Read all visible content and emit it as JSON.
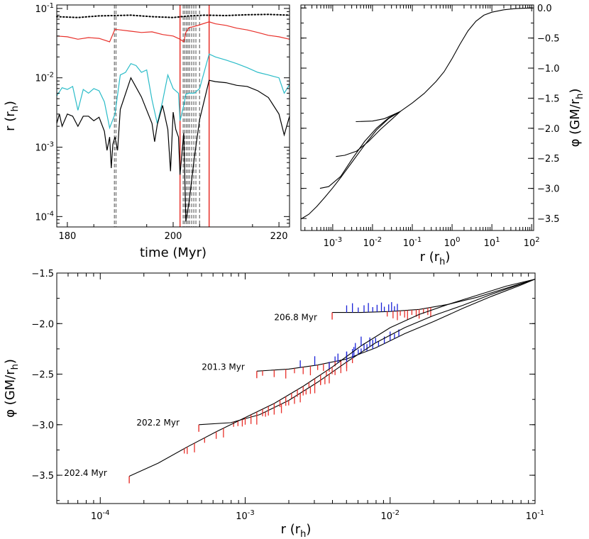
{
  "chart_data": [
    {
      "id": "time-evolution",
      "type": "line",
      "xlabel": "time  (Myr)",
      "ylabel_main": "r",
      "ylabel_sub": "h",
      "xlim": [
        178,
        222
      ],
      "ylim_log10": [
        -4.15,
        -0.95
      ],
      "yscale": "log",
      "xticks": [
        "180",
        "200",
        "220"
      ],
      "xtick_values": [
        180,
        200,
        220
      ],
      "ytick_bases": [
        "10",
        "10",
        "10",
        "10"
      ],
      "ytick_exps": [
        "-4",
        "-3",
        "-2",
        "-1"
      ],
      "ytick_values": [
        -4,
        -3,
        -2,
        -1
      ],
      "series": [
        {
          "style": "dotted",
          "color": "#000000",
          "x": [
            178,
            182,
            186,
            189,
            192,
            196,
            200,
            203,
            206,
            210,
            214,
            218,
            222
          ],
          "y": [
            0.076,
            0.074,
            0.078,
            0.079,
            0.08,
            0.076,
            0.074,
            0.078,
            0.08,
            0.079,
            0.081,
            0.082,
            0.08
          ]
        },
        {
          "style": "solid",
          "color": "#e8302a",
          "x": [
            178,
            180,
            182,
            184,
            186,
            188,
            189,
            190,
            192,
            194,
            196,
            198,
            200,
            201.3,
            202,
            202.4,
            203,
            204,
            205,
            206.8,
            208,
            210,
            212,
            214,
            216,
            218,
            220,
            222
          ],
          "y": [
            0.04,
            0.039,
            0.036,
            0.038,
            0.037,
            0.033,
            0.05,
            0.049,
            0.047,
            0.045,
            0.046,
            0.042,
            0.04,
            0.036,
            0.033,
            0.045,
            0.053,
            0.055,
            0.058,
            0.064,
            0.06,
            0.057,
            0.052,
            0.049,
            0.045,
            0.041,
            0.039,
            0.036
          ]
        },
        {
          "style": "solid",
          "color": "#2bbcc8",
          "x": [
            178,
            179,
            180,
            181,
            182,
            183,
            184,
            185,
            186,
            187,
            188,
            189,
            190,
            191,
            192,
            193,
            194,
            195,
            196,
            197,
            198,
            199,
            200,
            201,
            201.3,
            202,
            202.4,
            203,
            204,
            205,
            206.8,
            208,
            210,
            212,
            214,
            216,
            218,
            220,
            221,
            222
          ],
          "y": [
            0.0055,
            0.0072,
            0.0068,
            0.0075,
            0.0034,
            0.0068,
            0.006,
            0.007,
            0.0065,
            0.0045,
            0.0019,
            0.003,
            0.011,
            0.012,
            0.016,
            0.015,
            0.012,
            0.013,
            0.0048,
            0.0022,
            0.0046,
            0.011,
            0.007,
            0.006,
            0.0024,
            0.004,
            0.0058,
            0.006,
            0.006,
            0.007,
            0.022,
            0.02,
            0.018,
            0.016,
            0.014,
            0.012,
            0.011,
            0.01,
            0.006,
            0.008
          ]
        },
        {
          "style": "solid",
          "color": "#000000",
          "x": [
            178,
            178.5,
            179,
            180,
            181,
            182,
            183,
            184,
            185,
            186,
            187,
            187.5,
            188,
            188.3,
            188.6,
            189,
            189.5,
            190,
            192,
            194,
            196,
            196.5,
            197,
            198,
            199,
            199.5,
            200,
            200.5,
            201,
            201.3,
            202,
            202.4,
            203,
            204,
            205,
            206.8,
            208,
            210,
            212,
            214,
            216,
            218,
            220,
            221,
            222
          ],
          "y": [
            0.0022,
            0.003,
            0.002,
            0.003,
            0.0028,
            0.002,
            0.0028,
            0.0028,
            0.0024,
            0.0027,
            0.0017,
            0.0009,
            0.0014,
            0.0005,
            0.0011,
            0.0014,
            0.0009,
            0.0035,
            0.01,
            0.0053,
            0.0022,
            0.0012,
            0.0021,
            0.004,
            0.0018,
            0.00045,
            0.0032,
            0.0018,
            0.0014,
            0.0004,
            0.0016,
            8.5e-05,
            0.00016,
            0.0007,
            0.0025,
            0.0092,
            0.0088,
            0.0085,
            0.0078,
            0.0075,
            0.0065,
            0.0052,
            0.003,
            0.0015,
            0.0028
          ]
        }
      ],
      "dashed_lines_x": [
        188.9,
        189.2,
        201.9,
        202.2,
        202.5,
        202.8,
        203.1,
        203.5,
        203.9,
        204.3,
        205.0
      ],
      "red_lines_x": [
        201.3,
        206.8
      ]
    },
    {
      "id": "potential-profiles",
      "type": "line",
      "xlabel_main": "r",
      "xlabel_sub": "h",
      "ylabel_main": "φ",
      "ylabel_sub": "h",
      "xscale": "log",
      "xlim_log10": [
        -3.8,
        2.05
      ],
      "ylim": [
        -3.7,
        0.05
      ],
      "xtick_bases": [
        "10",
        "10",
        "10",
        "10",
        "10",
        "10"
      ],
      "xtick_exps": [
        "-3",
        "-2",
        "-1",
        "0",
        "1",
        "2"
      ],
      "xtick_values": [
        -3,
        -2,
        -1,
        0,
        1,
        2
      ],
      "yticks": [
        "0.0",
        "−0.5",
        "−1.0",
        "−1.5",
        "−2.0",
        "−2.5",
        "−3.0",
        "−3.5"
      ],
      "ytick_values": [
        0,
        -0.5,
        -1.0,
        -1.5,
        -2.0,
        -2.5,
        -3.0,
        -3.5
      ],
      "outer_curve": {
        "logr": [
          -1.3,
          -1.0,
          -0.7,
          -0.4,
          -0.2,
          0.0,
          0.2,
          0.4,
          0.6,
          0.8,
          1.0,
          1.3,
          1.6,
          2.0
        ],
        "phi": [
          -1.72,
          -1.58,
          -1.42,
          -1.22,
          -1.06,
          -0.84,
          -0.6,
          -0.38,
          -0.22,
          -0.12,
          -0.07,
          -0.03,
          -0.01,
          0.0
        ]
      },
      "profiles": [
        {
          "time": "206.8 Myr",
          "logr": [
            -2.42,
            -2.0,
            -1.7,
            -1.5,
            -1.3
          ],
          "phi": [
            -1.89,
            -1.88,
            -1.84,
            -1.78,
            -1.72
          ]
        },
        {
          "time": "201.3 Myr",
          "logr": [
            -2.92,
            -2.7,
            -2.4,
            -2.1,
            -1.8,
            -1.5,
            -1.3
          ],
          "phi": [
            -2.47,
            -2.45,
            -2.38,
            -2.22,
            -2.02,
            -1.84,
            -1.72
          ]
        },
        {
          "time": "202.2 Myr",
          "logr": [
            -3.32,
            -3.1,
            -2.8,
            -2.5,
            -2.2,
            -1.9,
            -1.6,
            -1.3
          ],
          "phi": [
            -3.0,
            -2.97,
            -2.8,
            -2.5,
            -2.22,
            -2.0,
            -1.83,
            -1.72
          ]
        },
        {
          "time": "202.4 Myr",
          "logr": [
            -3.8,
            -3.6,
            -3.4,
            -3.2,
            -3.0,
            -2.8,
            -2.5,
            -2.2,
            -1.9,
            -1.6,
            -1.3
          ],
          "phi": [
            -3.51,
            -3.43,
            -3.3,
            -3.15,
            -2.99,
            -2.82,
            -2.55,
            -2.28,
            -2.03,
            -1.84,
            -1.72
          ]
        }
      ]
    },
    {
      "id": "potential-zoom",
      "type": "line",
      "xlabel_main": "r",
      "xlabel_sub": "h",
      "ylabel_main": "φ",
      "ylabel_sub": "h",
      "xscale": "log",
      "xlim_log10": [
        -4.3,
        -1.0
      ],
      "ylim": [
        -3.78,
        -1.5
      ],
      "xtick_bases": [
        "10",
        "10",
        "10",
        "10"
      ],
      "xtick_exps": [
        "-4",
        "-3",
        "-2",
        "-1"
      ],
      "xtick_values": [
        -4,
        -3,
        -2,
        -1
      ],
      "yticks": [
        "−1.5",
        "−2.0",
        "−2.5",
        "−3.0",
        "−3.5"
      ],
      "ytick_values": [
        -1.5,
        -2.0,
        -2.5,
        -3.0,
        -3.5
      ],
      "curves": [
        {
          "time": "206.8 Myr",
          "label_logr": -2.8,
          "label_phi": -1.94,
          "logr": [
            -2.4,
            -2.2,
            -2.0,
            -1.8,
            -1.6,
            -1.4,
            -1.2,
            -1.0
          ],
          "phi": [
            -1.89,
            -1.89,
            -1.88,
            -1.86,
            -1.81,
            -1.74,
            -1.65,
            -1.56
          ],
          "red_logr": [
            -2.02,
            -1.98,
            -1.95,
            -1.93,
            -1.9,
            -1.88,
            -1.85,
            -1.82,
            -1.8,
            -1.77,
            -1.74,
            -1.72
          ],
          "blue_logr": [
            -2.3,
            -2.26,
            -2.22,
            -2.18,
            -2.15,
            -2.12,
            -2.09,
            -2.06,
            -2.04,
            -2.01,
            -1.99,
            -1.97,
            -1.95
          ]
        },
        {
          "time": "201.3 Myr",
          "label_logr": -3.3,
          "label_phi": -2.43,
          "logr": [
            -2.92,
            -2.7,
            -2.5,
            -2.3,
            -2.1,
            -1.9,
            -1.7,
            -1.5,
            -1.3,
            -1.1,
            -1.0
          ],
          "phi": [
            -2.47,
            -2.45,
            -2.41,
            -2.35,
            -2.24,
            -2.1,
            -1.98,
            -1.85,
            -1.73,
            -1.62,
            -1.56
          ],
          "red_logr": [
            -2.88,
            -2.8,
            -2.72,
            -2.66,
            -2.6,
            -2.55,
            -2.5,
            -2.46,
            -2.42,
            -2.38,
            -2.34,
            -2.3
          ],
          "blue_logr": [
            -2.62,
            -2.52,
            -2.38,
            -2.3,
            -2.25,
            -2.2,
            -2.16,
            -2.12,
            -2.08,
            -2.04,
            -2.0,
            -1.97,
            -1.94
          ]
        },
        {
          "time": "202.2 Myr",
          "label_logr": -3.75,
          "label_phi": -2.98,
          "logr": [
            -3.32,
            -3.1,
            -2.9,
            -2.7,
            -2.5,
            -2.3,
            -2.1,
            -1.9,
            -1.7,
            -1.5,
            -1.3,
            -1.1,
            -1.0
          ],
          "phi": [
            -3.0,
            -2.98,
            -2.9,
            -2.76,
            -2.58,
            -2.38,
            -2.19,
            -2.04,
            -1.92,
            -1.82,
            -1.71,
            -1.61,
            -1.56
          ],
          "red_logr": [
            -3.08,
            -3.02,
            -2.92,
            -2.86,
            -2.8,
            -2.75,
            -2.7,
            -2.66,
            -2.62,
            -2.58,
            -2.55,
            -2.52,
            -2.48,
            -2.45,
            -2.42,
            -2.38,
            -2.34,
            -2.3,
            -2.26
          ],
          "blue_logr": [
            -2.3,
            -2.26,
            -2.22,
            -2.18,
            -2.14,
            -2.1
          ]
        },
        {
          "time": "202.4 Myr",
          "label_logr": -4.25,
          "label_phi": -3.48,
          "logr": [
            -3.8,
            -3.6,
            -3.4,
            -3.2,
            -3.0,
            -2.8,
            -2.6,
            -2.4,
            -2.2,
            -2.0,
            -1.8,
            -1.6,
            -1.4,
            -1.2,
            -1.0
          ],
          "phi": [
            -3.51,
            -3.38,
            -3.22,
            -3.07,
            -2.93,
            -2.79,
            -2.62,
            -2.43,
            -2.22,
            -2.04,
            -1.91,
            -1.81,
            -1.72,
            -1.63,
            -1.56
          ],
          "red_logr": [
            -3.42,
            -3.4,
            -3.35,
            -3.28,
            -3.2,
            -3.15,
            -3.05,
            -3.0,
            -2.96,
            -2.92,
            -2.88,
            -2.84,
            -2.8,
            -2.76,
            -2.72,
            -2.68,
            -2.64,
            -2.6,
            -2.56,
            -2.52,
            -2.48,
            -2.44,
            -2.4
          ],
          "blue_logr": [
            -2.42,
            -2.36,
            -2.3,
            -2.24,
            -2.2
          ]
        }
      ]
    }
  ]
}
